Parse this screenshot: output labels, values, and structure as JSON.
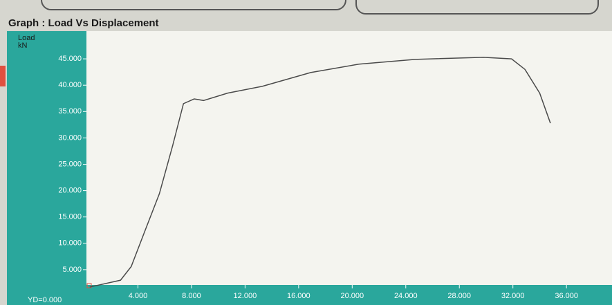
{
  "chart_data": {
    "type": "line",
    "title": "Graph : Load Vs Displacement",
    "ylabel": "Load",
    "yunit": "kN",
    "origin_label": "YD=0.000",
    "x": [
      0.4,
      2.7,
      3.5,
      4.5,
      5.6,
      6.6,
      7.4,
      8.2,
      8.9,
      10.7,
      13.3,
      16.9,
      20.5,
      24.7,
      29.8,
      31.9,
      32.9,
      34.0,
      34.8
    ],
    "series": [
      {
        "name": "Load",
        "color": "#4a4a4a",
        "values": [
          1.7,
          3.0,
          5.6,
          12.2,
          19.4,
          28.6,
          36.5,
          37.4,
          37.1,
          38.5,
          39.8,
          42.4,
          44.0,
          44.9,
          45.3,
          45.0,
          43.0,
          38.5,
          32.8
        ]
      }
    ],
    "xlim": [
      0,
      39.4
    ],
    "ylim": [
      0,
      50
    ],
    "xticks": [
      {
        "value": 4,
        "label": "4.000"
      },
      {
        "value": 8,
        "label": "8.000"
      },
      {
        "value": 12,
        "label": "12.000"
      },
      {
        "value": 16,
        "label": "16.000"
      },
      {
        "value": 20,
        "label": "20.000"
      },
      {
        "value": 24,
        "label": "24.000"
      },
      {
        "value": 28,
        "label": "28.000"
      },
      {
        "value": 32,
        "label": "32.000"
      },
      {
        "value": 36,
        "label": "36.000"
      }
    ],
    "yticks": [
      {
        "value": 5,
        "label": "5.000"
      },
      {
        "value": 10,
        "label": "10.000"
      },
      {
        "value": 15,
        "label": "15.000"
      },
      {
        "value": 20,
        "label": "20.000"
      },
      {
        "value": 25,
        "label": "25.000"
      },
      {
        "value": 30,
        "label": "30.000"
      },
      {
        "value": 35,
        "label": "35.000"
      },
      {
        "value": 40,
        "label": "40.000"
      },
      {
        "value": 45,
        "label": "45.000"
      }
    ]
  }
}
